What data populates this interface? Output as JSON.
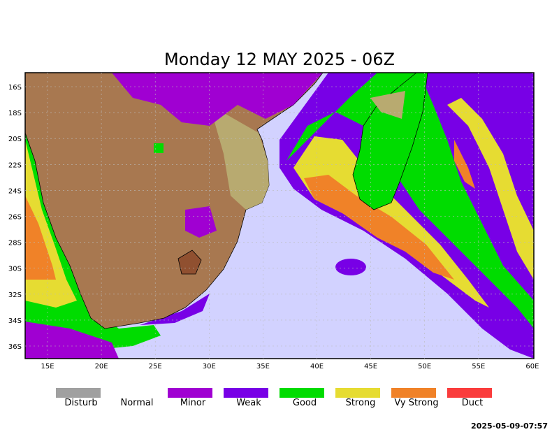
{
  "title": "Monday 12 MAY 2025 - 06Z",
  "lat_labels": [
    "16S",
    "18S",
    "20S",
    "22S",
    "24S",
    "26S",
    "28S",
    "30S",
    "32S",
    "34S",
    "36S"
  ],
  "lon_labels": [
    "15E",
    "20E",
    "25E",
    "30E",
    "35E",
    "40E",
    "45E",
    "50E",
    "55E",
    "60E"
  ],
  "legend": [
    {
      "label": "Disturb",
      "color": "#a0a0a0"
    },
    {
      "label": "Normal",
      "color": "#ffffff"
    },
    {
      "label": "Minor",
      "color": "#a000d2"
    },
    {
      "label": "Weak",
      "color": "#7800e6"
    },
    {
      "label": "Good",
      "color": "#00dc00"
    },
    {
      "label": "Strong",
      "color": "#e6dc32"
    },
    {
      "label": "Vy Strong",
      "color": "#f08228"
    },
    {
      "label": "Duct",
      "color": "#fa3c3c"
    }
  ],
  "timestamp": "2025-05-09-07:57"
}
